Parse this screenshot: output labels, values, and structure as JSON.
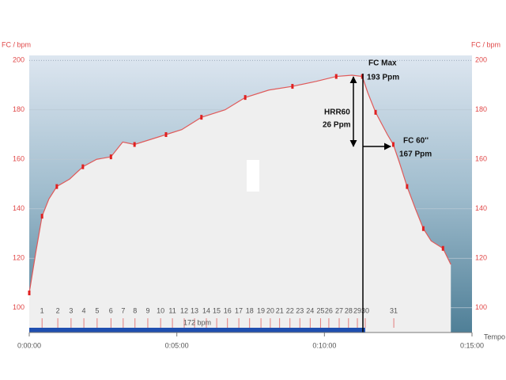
{
  "chart_data": {
    "type": "area",
    "y_label": "FC / bpm",
    "y2_label": "FC / bpm",
    "x_label": "Tempo",
    "x": [
      0,
      13,
      26,
      40,
      56,
      82,
      109,
      137,
      166,
      190,
      214,
      246,
      278,
      310,
      350,
      398,
      439,
      487,
      535,
      583,
      624,
      656,
      677,
      688,
      704,
      728,
      740,
      752,
      768,
      785,
      801,
      817,
      841,
      857
    ],
    "series": [
      {
        "name": "FC",
        "color": "#e05a5a",
        "values": [
          106,
          122,
          137,
          144,
          149,
          152,
          157,
          160,
          161,
          167,
          166,
          168,
          170,
          172,
          177,
          180,
          185,
          188,
          189.5,
          191.5,
          193.5,
          194,
          193.5,
          187,
          179,
          170,
          166,
          159,
          149,
          140,
          132,
          127,
          124,
          117.5
        ]
      }
    ],
    "xlim": [
      0,
      900
    ],
    "xticks": [
      {
        "value": 0,
        "label": "0:00:00"
      },
      {
        "value": 300,
        "label": "0:05:00"
      },
      {
        "value": 600,
        "label": "0:10:00"
      },
      {
        "value": 900,
        "label": "0:15:00"
      }
    ],
    "ylim": [
      90,
      202
    ],
    "yticks": [
      100,
      120,
      140,
      160,
      180,
      200
    ],
    "grid": true,
    "laps": {
      "labels": [
        "1",
        "2",
        "3",
        "4",
        "5",
        "6",
        "7",
        "8",
        "9",
        "10",
        "11",
        "12",
        "13",
        "14",
        "15",
        "16",
        "17",
        "18",
        "19",
        "20",
        "21",
        "22",
        "23",
        "24",
        "25",
        "26",
        "27",
        "28",
        "29",
        "30",
        "31"
      ],
      "x": [
        26,
        58,
        85,
        111,
        138,
        166,
        191,
        215,
        241,
        267,
        291,
        315,
        336,
        360,
        381,
        403,
        426,
        448,
        471,
        490,
        509,
        530,
        550,
        571,
        592,
        609,
        630,
        649,
        667,
        683,
        741
      ]
    },
    "summary_bar": {
      "label": "172 bpm",
      "x": [
        0,
        683
      ],
      "color": "#1f4fb0"
    },
    "annotations": [
      {
        "line1": "FC Max",
        "line2": "193 Ppm"
      },
      {
        "line1": "HRR60",
        "line2": "26 Ppm"
      },
      {
        "line1": "FC 60''",
        "line2": "167 Ppm"
      }
    ]
  }
}
